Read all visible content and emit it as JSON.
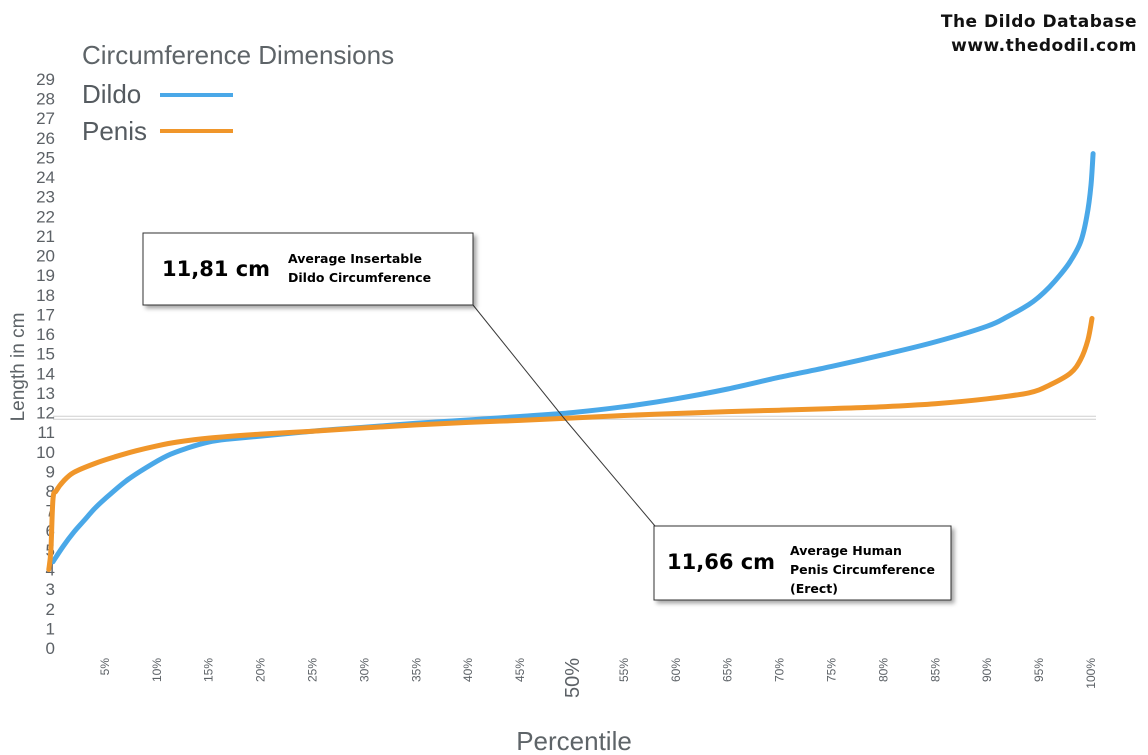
{
  "branding": {
    "line1": "The Dildo Database",
    "line2": "www.thedodil.com"
  },
  "chart_data": {
    "type": "line",
    "title": "Circumference Dimensions",
    "xlabel": "Percentile",
    "ylabel": "Length in cm",
    "ylim": [
      0,
      29
    ],
    "xlim": [
      0,
      100
    ],
    "yticks": [
      0,
      1,
      2,
      3,
      4,
      5,
      6,
      7,
      8,
      9,
      10,
      11,
      12,
      13,
      14,
      15,
      16,
      17,
      18,
      19,
      20,
      21,
      22,
      23,
      24,
      25,
      26,
      27,
      28,
      29
    ],
    "xticks": [
      {
        "value": 5,
        "label": "5%"
      },
      {
        "value": 10,
        "label": "10%"
      },
      {
        "value": 15,
        "label": "15%"
      },
      {
        "value": 20,
        "label": "20%"
      },
      {
        "value": 25,
        "label": "25%"
      },
      {
        "value": 30,
        "label": "30%"
      },
      {
        "value": 35,
        "label": "35%"
      },
      {
        "value": 40,
        "label": "40%"
      },
      {
        "value": 45,
        "label": "45%"
      },
      {
        "value": 50,
        "label": "50%",
        "emphasis": true
      },
      {
        "value": 55,
        "label": "55%"
      },
      {
        "value": 60,
        "label": "60%"
      },
      {
        "value": 65,
        "label": "65%"
      },
      {
        "value": 70,
        "label": "70%"
      },
      {
        "value": 75,
        "label": "75%"
      },
      {
        "value": 80,
        "label": "80%"
      },
      {
        "value": 85,
        "label": "85%"
      },
      {
        "value": 90,
        "label": "90%"
      },
      {
        "value": 95,
        "label": "95%"
      },
      {
        "value": 100,
        "label": "100%"
      }
    ],
    "legend_position": "top-left",
    "series": [
      {
        "name": "Dildo",
        "color": "#4aa8e8",
        "points": [
          [
            0,
            4.4
          ],
          [
            1,
            5.2
          ],
          [
            2,
            5.9
          ],
          [
            3,
            6.5
          ],
          [
            4,
            7.1
          ],
          [
            5,
            7.6
          ],
          [
            7,
            8.5
          ],
          [
            9,
            9.2
          ],
          [
            11,
            9.8
          ],
          [
            13,
            10.2
          ],
          [
            15,
            10.5
          ],
          [
            17,
            10.65
          ],
          [
            20,
            10.8
          ],
          [
            25,
            11.05
          ],
          [
            30,
            11.25
          ],
          [
            35,
            11.45
          ],
          [
            40,
            11.62
          ],
          [
            45,
            11.8
          ],
          [
            50,
            12.0
          ],
          [
            55,
            12.3
          ],
          [
            60,
            12.7
          ],
          [
            65,
            13.2
          ],
          [
            70,
            13.8
          ],
          [
            75,
            14.35
          ],
          [
            80,
            14.95
          ],
          [
            85,
            15.6
          ],
          [
            90,
            16.4
          ],
          [
            92,
            16.9
          ],
          [
            94,
            17.5
          ],
          [
            95,
            17.9
          ],
          [
            96,
            18.4
          ],
          [
            97,
            19.0
          ],
          [
            98,
            19.7
          ],
          [
            99,
            20.7
          ],
          [
            99.6,
            22.0
          ],
          [
            100,
            23.6
          ],
          [
            100.2,
            25.2
          ]
        ]
      },
      {
        "name": "Penis",
        "color": "#f0962a",
        "points": [
          [
            -0.4,
            4.0
          ],
          [
            -0.2,
            5.0
          ],
          [
            0,
            7.6
          ],
          [
            0.3,
            8.0
          ],
          [
            1,
            8.5
          ],
          [
            2,
            8.95
          ],
          [
            4,
            9.4
          ],
          [
            6,
            9.75
          ],
          [
            8,
            10.05
          ],
          [
            10,
            10.3
          ],
          [
            12,
            10.5
          ],
          [
            15,
            10.7
          ],
          [
            20,
            10.9
          ],
          [
            25,
            11.05
          ],
          [
            30,
            11.22
          ],
          [
            35,
            11.37
          ],
          [
            40,
            11.5
          ],
          [
            45,
            11.6
          ],
          [
            50,
            11.72
          ],
          [
            55,
            11.85
          ],
          [
            60,
            11.95
          ],
          [
            65,
            12.05
          ],
          [
            70,
            12.12
          ],
          [
            75,
            12.2
          ],
          [
            80,
            12.3
          ],
          [
            85,
            12.45
          ],
          [
            90,
            12.7
          ],
          [
            94,
            13.0
          ],
          [
            96,
            13.4
          ],
          [
            98,
            14.0
          ],
          [
            99,
            14.7
          ],
          [
            99.7,
            15.7
          ],
          [
            100.1,
            16.8
          ]
        ]
      }
    ],
    "reference_lines": [
      11.66,
      11.81
    ],
    "annotations": [
      {
        "value_text": "11,81 cm",
        "lines": [
          "Average Insertable",
          "Dildo Circumference"
        ],
        "target": [
          48.5,
          11.81
        ]
      },
      {
        "value_text": "11,66 cm",
        "lines": [
          "Average Human",
          "Penis Circumference",
          "(Erect)"
        ],
        "target": [
          48.5,
          11.66
        ]
      }
    ]
  }
}
